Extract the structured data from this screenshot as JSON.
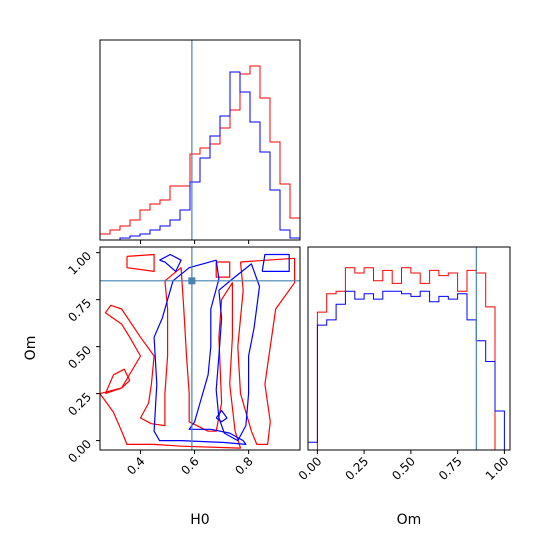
{
  "chart_data": {
    "type": "corner",
    "parameters": [
      "H0",
      "Om"
    ],
    "truths": {
      "H0": 0.59,
      "Om": 0.85
    },
    "truth_color": "#4682b4",
    "series_colors": [
      "#ff0000",
      "#0000ff"
    ],
    "axes": {
      "H0": {
        "lim": [
          0.25,
          0.99
        ],
        "ticks": [
          0.4,
          0.6,
          0.8
        ],
        "tick_labels": [
          "0.4",
          "0.6",
          "0.8"
        ],
        "label": "H0"
      },
      "Om": {
        "lim": [
          -0.05,
          1.03
        ],
        "ticks": [
          0.0,
          0.25,
          0.5,
          0.75,
          1.0
        ],
        "tick_labels": [
          "0.00",
          "0.25",
          "0.50",
          "0.75",
          "1.00"
        ],
        "label": "Om"
      }
    },
    "hist_H0": {
      "edges": [
        0.25,
        0.287,
        0.324,
        0.361,
        0.398,
        0.435,
        0.472,
        0.509,
        0.546,
        0.583,
        0.62,
        0.657,
        0.694,
        0.731,
        0.768,
        0.805,
        0.842,
        0.879,
        0.916,
        0.953,
        0.99
      ],
      "ymax": 1.0,
      "series": [
        {
          "color": "#ff0000",
          "values": [
            0.03,
            0.05,
            0.07,
            0.1,
            0.15,
            0.18,
            0.2,
            0.27,
            0.27,
            0.43,
            0.46,
            0.48,
            0.56,
            0.65,
            0.83,
            0.87,
            0.71,
            0.49,
            0.28,
            0.11
          ]
        },
        {
          "color": "#0000ff",
          "values": [
            0.0,
            0.0,
            0.01,
            0.02,
            0.03,
            0.05,
            0.07,
            0.1,
            0.15,
            0.29,
            0.41,
            0.52,
            0.62,
            0.84,
            0.74,
            0.59,
            0.44,
            0.25,
            0.05,
            0.01
          ]
        }
      ]
    },
    "hist_Om": {
      "edges": [
        -0.05,
        0.0,
        0.05,
        0.1,
        0.15,
        0.2,
        0.25,
        0.3,
        0.35,
        0.4,
        0.45,
        0.5,
        0.55,
        0.6,
        0.65,
        0.7,
        0.75,
        0.8,
        0.85,
        0.9,
        0.95,
        1.0
      ],
      "ymax": 0.78,
      "series": [
        {
          "color": "#ff0000",
          "values": [
            0.0,
            0.53,
            0.6,
            0.61,
            0.7,
            0.68,
            0.7,
            0.65,
            0.69,
            0.64,
            0.7,
            0.68,
            0.64,
            0.69,
            0.67,
            0.68,
            0.61,
            0.69,
            0.68,
            0.55,
            0.0
          ]
        },
        {
          "color": "#0000ff",
          "values": [
            0.03,
            0.48,
            0.5,
            0.56,
            0.61,
            0.58,
            0.6,
            0.58,
            0.61,
            0.61,
            0.6,
            0.59,
            0.61,
            0.57,
            0.59,
            0.58,
            0.6,
            0.5,
            0.42,
            0.34,
            0.15
          ]
        }
      ]
    },
    "contours": [
      {
        "color": "#ff0000",
        "paths": [
          [
            [
              0.35,
              0.98
            ],
            [
              0.45,
              0.99
            ],
            [
              0.45,
              0.9
            ],
            [
              0.35,
              0.92
            ],
            [
              0.35,
              0.98
            ]
          ],
          [
            [
              0.68,
              0.95
            ],
            [
              0.68,
              0.87
            ],
            [
              0.73,
              0.87
            ],
            [
              0.73,
              0.95
            ],
            [
              0.68,
              0.95
            ]
          ],
          [
            [
              0.77,
              0.95
            ],
            [
              0.97,
              0.97
            ],
            [
              0.97,
              0.84
            ],
            [
              0.9,
              0.7
            ],
            [
              0.88,
              0.5
            ],
            [
              0.86,
              0.3
            ],
            [
              0.88,
              0.1
            ],
            [
              0.87,
              -0.02
            ],
            [
              0.83,
              -0.02
            ],
            [
              0.81,
              0.05
            ],
            [
              0.77,
              0.25
            ],
            [
              0.76,
              0.5
            ],
            [
              0.78,
              0.8
            ],
            [
              0.77,
              0.95
            ]
          ],
          [
            [
              0.49,
              0.85
            ],
            [
              0.55,
              0.92
            ],
            [
              0.56,
              0.7
            ],
            [
              0.57,
              0.45
            ],
            [
              0.58,
              0.25
            ],
            [
              0.58,
              0.1
            ],
            [
              0.65,
              0.05
            ],
            [
              0.68,
              0.05
            ],
            [
              0.7,
              0.2
            ],
            [
              0.69,
              0.55
            ],
            [
              0.7,
              0.75
            ],
            [
              0.74,
              0.84
            ],
            [
              0.74,
              0.55
            ],
            [
              0.73,
              0.3
            ],
            [
              0.75,
              0.05
            ],
            [
              0.77,
              -0.04
            ],
            [
              0.55,
              -0.03
            ],
            [
              0.45,
              -0.02
            ],
            [
              0.35,
              -0.02
            ],
            [
              0.33,
              0.05
            ],
            [
              0.3,
              0.15
            ],
            [
              0.25,
              0.25
            ],
            [
              0.33,
              0.28
            ],
            [
              0.4,
              0.45
            ],
            [
              0.36,
              0.55
            ],
            [
              0.33,
              0.62
            ],
            [
              0.27,
              0.68
            ],
            [
              0.29,
              0.72
            ],
            [
              0.33,
              0.7
            ],
            [
              0.4,
              0.55
            ],
            [
              0.45,
              0.45
            ],
            [
              0.44,
              0.3
            ],
            [
              0.43,
              0.2
            ],
            [
              0.4,
              0.12
            ],
            [
              0.44,
              0.09
            ],
            [
              0.49,
              0.08
            ],
            [
              0.49,
              0.25
            ],
            [
              0.5,
              0.45
            ],
            [
              0.5,
              0.7
            ],
            [
              0.49,
              0.85
            ]
          ],
          [
            [
              0.27,
              0.25
            ],
            [
              0.3,
              0.35
            ],
            [
              0.34,
              0.38
            ],
            [
              0.36,
              0.32
            ],
            [
              0.33,
              0.28
            ],
            [
              0.27,
              0.25
            ]
          ]
        ]
      },
      {
        "color": "#0000ff",
        "paths": [
          [
            [
              0.47,
              0.96
            ],
            [
              0.51,
              0.99
            ],
            [
              0.55,
              0.96
            ],
            [
              0.53,
              0.9
            ],
            [
              0.49,
              0.95
            ],
            [
              0.47,
              0.96
            ]
          ],
          [
            [
              0.52,
              0.85
            ],
            [
              0.58,
              0.92
            ],
            [
              0.68,
              0.96
            ],
            [
              0.69,
              0.86
            ],
            [
              0.66,
              0.7
            ],
            [
              0.66,
              0.5
            ],
            [
              0.65,
              0.35
            ],
            [
              0.62,
              0.2
            ],
            [
              0.6,
              0.1
            ],
            [
              0.58,
              0.06
            ],
            [
              0.66,
              0.06
            ],
            [
              0.73,
              0.04
            ],
            [
              0.78,
              0.0
            ],
            [
              0.79,
              -0.02
            ],
            [
              0.71,
              -0.01
            ],
            [
              0.55,
              0.0
            ],
            [
              0.47,
              0.0
            ],
            [
              0.45,
              0.05
            ],
            [
              0.46,
              0.3
            ],
            [
              0.45,
              0.55
            ],
            [
              0.48,
              0.65
            ],
            [
              0.52,
              0.85
            ]
          ],
          [
            [
              0.69,
              0.8
            ],
            [
              0.74,
              0.86
            ],
            [
              0.81,
              0.94
            ],
            [
              0.84,
              0.82
            ],
            [
              0.82,
              0.6
            ],
            [
              0.8,
              0.45
            ],
            [
              0.8,
              0.25
            ],
            [
              0.79,
              0.08
            ],
            [
              0.76,
              0.0
            ],
            [
              0.71,
              0.04
            ],
            [
              0.69,
              0.12
            ],
            [
              0.68,
              0.27
            ],
            [
              0.69,
              0.45
            ],
            [
              0.7,
              0.65
            ],
            [
              0.69,
              0.8
            ]
          ],
          [
            [
              0.68,
              0.12
            ],
            [
              0.7,
              0.16
            ],
            [
              0.72,
              0.12
            ],
            [
              0.7,
              0.1
            ],
            [
              0.68,
              0.12
            ]
          ],
          [
            [
              0.85,
              0.9
            ],
            [
              0.86,
              0.99
            ],
            [
              0.95,
              0.99
            ],
            [
              0.95,
              0.9
            ],
            [
              0.85,
              0.9
            ]
          ]
        ]
      }
    ]
  }
}
